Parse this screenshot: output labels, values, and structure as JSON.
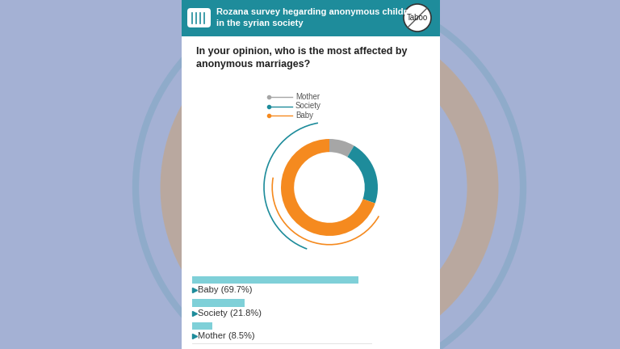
{
  "header": {
    "title": "Rozana survey hegarding anonymous children in the syrian society",
    "badge": "Taboo"
  },
  "chart_data": [
    {
      "type": "pie",
      "title": "In your opinion, who is the most affected by anonymous marriages?",
      "categories": [
        "Mother",
        "Society",
        "Baby"
      ],
      "values": [
        8.5,
        21.8,
        69.7
      ],
      "colors": [
        "#a6a6a6",
        "#1e8c9b",
        "#f58a1f"
      ]
    },
    {
      "type": "bar",
      "orientation": "horizontal",
      "categories": [
        "Baby",
        "Society",
        "Mother"
      ],
      "values": [
        69.7,
        21.8,
        8.5
      ],
      "value_labels": [
        "Baby (69.7%)",
        "Society (21.8%)",
        "Mother (8.5%)"
      ],
      "data_labels": true,
      "color": "#7fd0d8",
      "xlim": [
        0,
        75
      ],
      "xticks": [],
      "tick_labels": false
    }
  ]
}
